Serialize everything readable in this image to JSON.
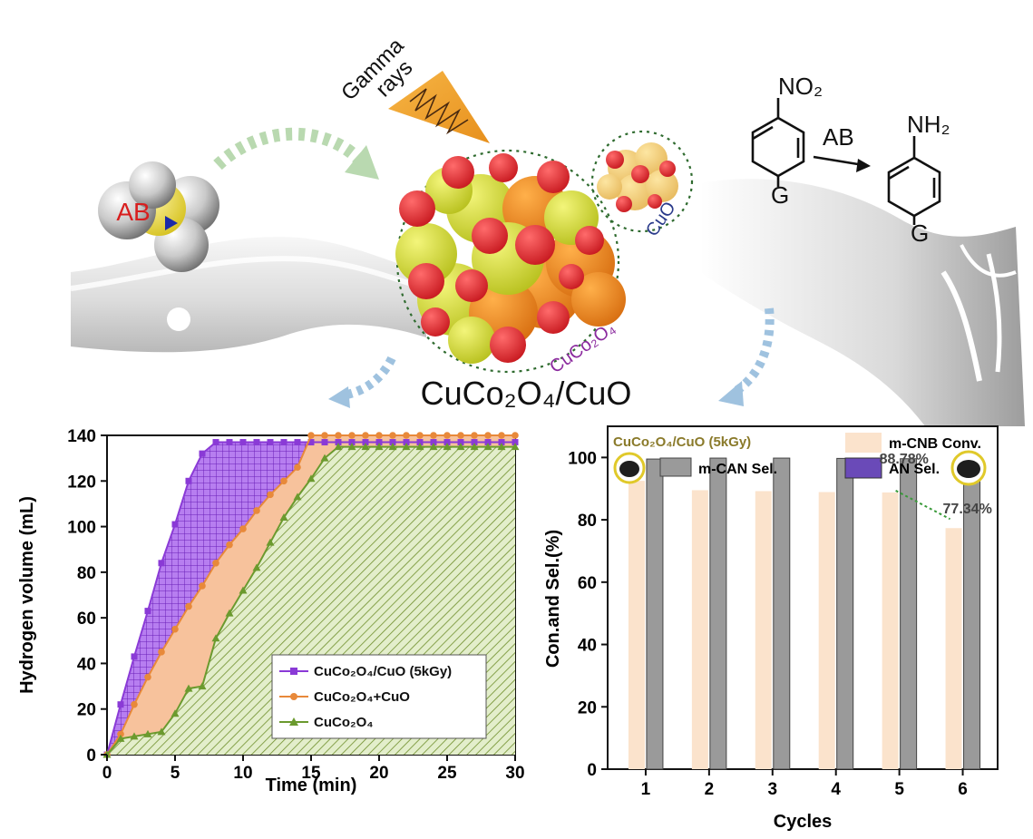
{
  "scene": {
    "gamma_label_1": "Gamma",
    "gamma_label_2": "rays",
    "ab_label": "AB",
    "cuo_label": "CuO",
    "cuco2o4_label": "CuCo₂O₄",
    "catalyst_label": "CuCo₂O₄/CuO",
    "reaction": {
      "reactant_group": "NO₂",
      "product_group": "NH₂",
      "reagent": "AB",
      "substituent_1": "G",
      "substituent_2": "G"
    },
    "colors": {
      "cluster_red": "#e8232a",
      "cluster_yellow": "#d7df2a",
      "cluster_orange": "#f08a1c",
      "milk": "#e9e9e9",
      "arrow_green": "#b9d9b0",
      "arrow_blue": "#9fc2df"
    }
  },
  "chart_data": [
    {
      "type": "area",
      "xlabel": "Time (min)",
      "ylabel": "Hydrogen volume (mL)",
      "xlim": [
        0,
        30
      ],
      "ylim": [
        0,
        140
      ],
      "xticks": [
        0,
        5,
        10,
        15,
        20,
        25,
        30
      ],
      "yticks": [
        0,
        20,
        40,
        60,
        80,
        100,
        120,
        140
      ],
      "legend_position": "bottom-right",
      "series": [
        {
          "name": "CuCo₂O₄/CuO (5kGy)",
          "color": "#8a3ad6",
          "marker": "square",
          "x": [
            0,
            1,
            2,
            3,
            4,
            5,
            6,
            7,
            8,
            9,
            10,
            11,
            12,
            13,
            14,
            15,
            16,
            17,
            18,
            19,
            20,
            21,
            22,
            23,
            24,
            25,
            26,
            27,
            28,
            29,
            30
          ],
          "y": [
            0,
            22,
            43,
            63,
            84,
            101,
            120,
            132,
            137,
            137,
            137,
            137,
            137,
            137,
            137,
            137,
            137,
            137,
            137,
            137,
            137,
            137,
            137,
            137,
            137,
            137,
            137,
            137,
            137,
            137,
            137
          ]
        },
        {
          "name": "CuCo₂O₄+CuO",
          "color": "#e8893a",
          "marker": "circle",
          "x": [
            0,
            1,
            2,
            3,
            4,
            5,
            6,
            7,
            8,
            9,
            10,
            11,
            12,
            13,
            14,
            15,
            16,
            17,
            18,
            19,
            20,
            21,
            22,
            23,
            24,
            25,
            26,
            27,
            28,
            29,
            30
          ],
          "y": [
            0,
            9,
            22,
            34,
            45,
            55,
            65,
            74,
            84,
            92,
            99,
            107,
            114,
            120,
            126,
            140,
            140,
            140,
            140,
            140,
            140,
            140,
            140,
            140,
            140,
            140,
            140,
            140,
            140,
            140,
            140
          ]
        },
        {
          "name": "CuCo₂O₄",
          "color": "#6b9a2e",
          "marker": "triangle",
          "x": [
            0,
            1,
            2,
            3,
            4,
            5,
            6,
            7,
            8,
            9,
            10,
            11,
            12,
            13,
            14,
            15,
            16,
            17,
            18,
            19,
            20,
            21,
            22,
            23,
            24,
            25,
            26,
            27,
            28,
            29,
            30
          ],
          "y": [
            0,
            7,
            8,
            9,
            10,
            18,
            29,
            30,
            51,
            62,
            72,
            82,
            93,
            104,
            113,
            121,
            130,
            135,
            135,
            135,
            135,
            135,
            135,
            135,
            135,
            135,
            135,
            135,
            135,
            135,
            135
          ]
        }
      ]
    },
    {
      "type": "bar",
      "xlabel": "Cycles",
      "ylabel": "Con.and Sel.(%)",
      "categories": [
        "1",
        "2",
        "3",
        "4",
        "5",
        "6"
      ],
      "ylim": [
        0,
        110
      ],
      "yticks": [
        0,
        20,
        40,
        60,
        80,
        100
      ],
      "legend_position": "top",
      "inset_label": "CuCo₂O₄/CuO (5kGy)",
      "series": [
        {
          "name": "m-CNB Conv.",
          "color": "#fbe3cc",
          "values": [
            92.5,
            89.5,
            89.2,
            88.9,
            88.78,
            77.34
          ]
        },
        {
          "name": "m-CAN Sel.",
          "color": "#9a9a9a",
          "values": [
            99.5,
            99.8,
            99.8,
            99.7,
            99.6,
            97.5
          ]
        }
      ],
      "extra_legend": {
        "name": "AN Sel.",
        "color": "#6a4ab8"
      },
      "annotations": [
        "88.78%",
        "77.34%"
      ]
    }
  ]
}
